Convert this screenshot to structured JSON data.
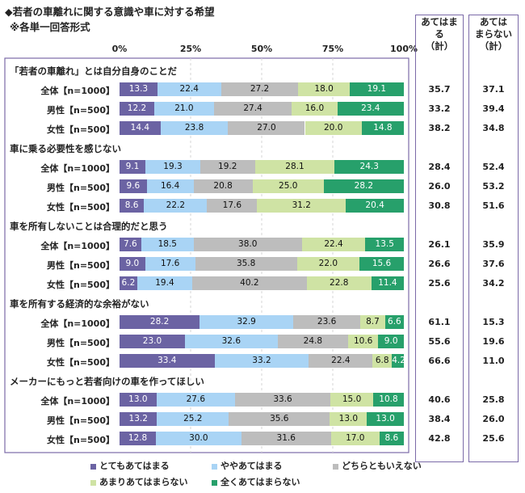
{
  "title_main": "◆若者の車離れに関する意識や車に対する希望",
  "title_sub": "※各単一回答形式",
  "summary_headers": [
    "あてはまる（計）",
    "あてはまらない（計）"
  ],
  "summary_head_lines": [
    [
      "あてはま",
      "る",
      "（計）"
    ],
    [
      "あては",
      "まらない",
      "（計）"
    ]
  ],
  "chart_data": {
    "type": "bar",
    "orientation": "horizontal-stacked-100",
    "xlim": [
      0,
      100
    ],
    "x_ticks": [
      "0%",
      "25%",
      "50%",
      "75%",
      "100%"
    ],
    "legend": [
      {
        "name": "とてもあてはまる",
        "color": "#6b63a3"
      },
      {
        "name": "ややあてはまる",
        "color": "#a9d4f5"
      },
      {
        "name": "どちらともいえない",
        "color": "#bdbdbd"
      },
      {
        "name": "あまりあてはまらない",
        "color": "#cfe3a4"
      },
      {
        "name": "全くあてはまらない",
        "color": "#27a06b"
      }
    ],
    "groups": [
      {
        "heading": "「若者の車離れ」とは自分自身のことだ",
        "rows": [
          {
            "label": "全体【n=1000】",
            "values": [
              13.3,
              22.4,
              27.2,
              18.0,
              19.1
            ],
            "agree_total": "35.7",
            "disagree_total": "37.1"
          },
          {
            "label": "男性【n=500】",
            "values": [
              12.2,
              21.0,
              27.4,
              16.0,
              23.4
            ],
            "agree_total": "33.2",
            "disagree_total": "39.4"
          },
          {
            "label": "女性【n=500】",
            "values": [
              14.4,
              23.8,
              27.0,
              20.0,
              14.8
            ],
            "agree_total": "38.2",
            "disagree_total": "34.8"
          }
        ]
      },
      {
        "heading": "車に乗る必要性を感じない",
        "rows": [
          {
            "label": "全体【n=1000】",
            "values": [
              9.1,
              19.3,
              19.2,
              28.1,
              24.3
            ],
            "agree_total": "28.4",
            "disagree_total": "52.4"
          },
          {
            "label": "男性【n=500】",
            "values": [
              9.6,
              16.4,
              20.8,
              25.0,
              28.2
            ],
            "agree_total": "26.0",
            "disagree_total": "53.2"
          },
          {
            "label": "女性【n=500】",
            "values": [
              8.6,
              22.2,
              17.6,
              31.2,
              20.4
            ],
            "agree_total": "30.8",
            "disagree_total": "51.6"
          }
        ]
      },
      {
        "heading": "車を所有しないことは合理的だと思う",
        "rows": [
          {
            "label": "全体【n=1000】",
            "values": [
              7.6,
              18.5,
              38.0,
              22.4,
              13.5
            ],
            "agree_total": "26.1",
            "disagree_total": "35.9"
          },
          {
            "label": "男性【n=500】",
            "values": [
              9.0,
              17.6,
              35.8,
              22.0,
              15.6
            ],
            "agree_total": "26.6",
            "disagree_total": "37.6"
          },
          {
            "label": "女性【n=500】",
            "values": [
              6.2,
              19.4,
              40.2,
              22.8,
              11.4
            ],
            "agree_total": "25.6",
            "disagree_total": "34.2"
          }
        ]
      },
      {
        "heading": "車を所有する経済的な余裕がない",
        "rows": [
          {
            "label": "全体【n=1000】",
            "values": [
              28.2,
              32.9,
              23.6,
              8.7,
              6.6
            ],
            "agree_total": "61.1",
            "disagree_total": "15.3"
          },
          {
            "label": "男性【n=500】",
            "values": [
              23.0,
              32.6,
              24.8,
              10.6,
              9.0
            ],
            "agree_total": "55.6",
            "disagree_total": "19.6"
          },
          {
            "label": "女性【n=500】",
            "values": [
              33.4,
              33.2,
              22.4,
              6.8,
              4.2
            ],
            "agree_total": "66.6",
            "disagree_total": "11.0"
          }
        ]
      },
      {
        "heading": "メーカーにもっと若者向けの車を作ってほしい",
        "rows": [
          {
            "label": "全体【n=1000】",
            "values": [
              13.0,
              27.6,
              33.6,
              15.0,
              10.8
            ],
            "agree_total": "40.6",
            "disagree_total": "25.8"
          },
          {
            "label": "男性【n=500】",
            "values": [
              13.2,
              25.2,
              35.6,
              13.0,
              13.0
            ],
            "agree_total": "38.4",
            "disagree_total": "26.0"
          },
          {
            "label": "女性【n=500】",
            "values": [
              12.8,
              30.0,
              31.6,
              17.0,
              8.6
            ],
            "agree_total": "42.8",
            "disagree_total": "25.6"
          }
        ]
      }
    ]
  }
}
